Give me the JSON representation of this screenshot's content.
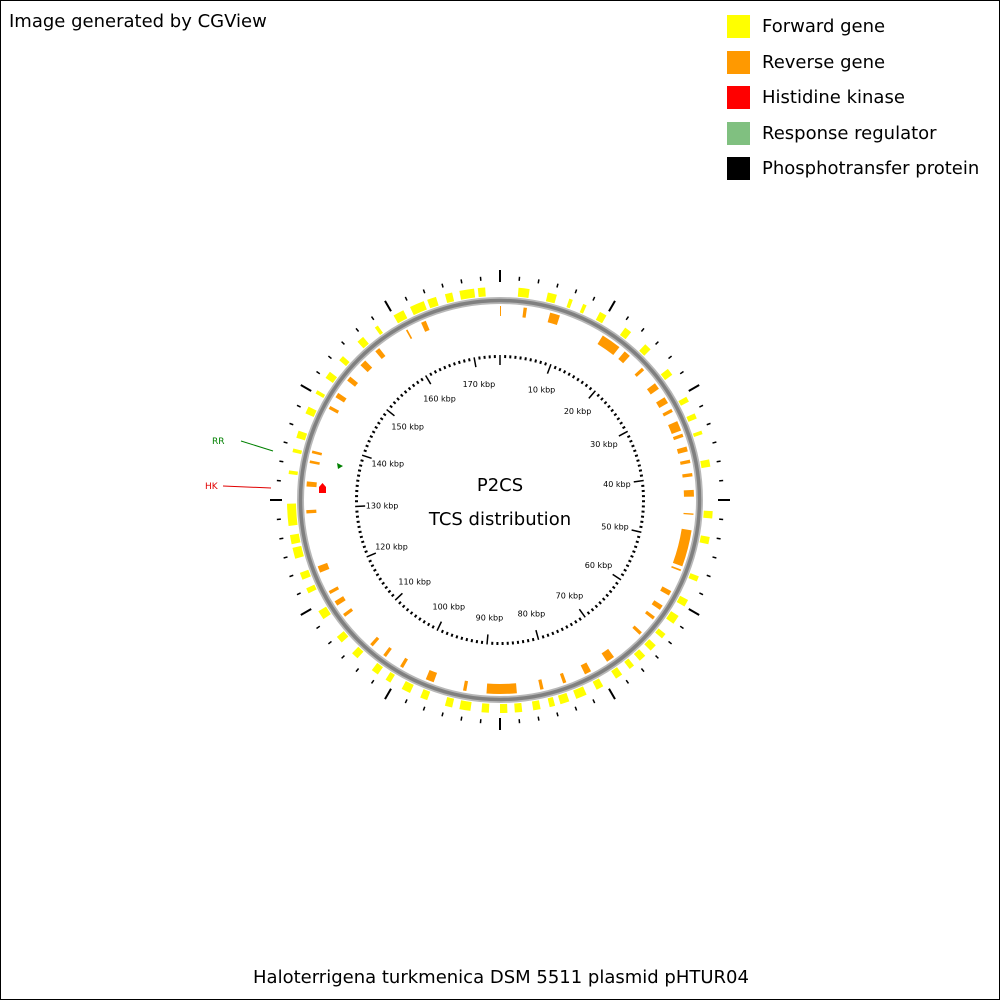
{
  "credit": "Image generated by CGView",
  "legend": [
    {
      "label": "Forward gene",
      "color": "#ffff00"
    },
    {
      "label": "Reverse gene",
      "color": "#ff9900"
    },
    {
      "label": "Histidine kinase",
      "color": "#ff0000"
    },
    {
      "label": "Response regulator",
      "color": "#80c080"
    },
    {
      "label": "Phosphotransfer protein",
      "color": "#000000"
    }
  ],
  "map": {
    "center_title": "P2CS",
    "center_subtitle": "TCS distribution",
    "plasmid_title": "Haloterrigena turkmenica DSM 5511 plasmid pHTUR04",
    "backbone_color": "#808080",
    "scale_labels": [
      "10 kbp",
      "20 kbp",
      "30 kbp",
      "40 kbp",
      "50 kbp",
      "60 kbp",
      "70 kbp",
      "80 kbp",
      "90 kbp",
      "100 kbp",
      "110 kbp",
      "120 kbp",
      "130 kbp",
      "140 kbp",
      "150 kbp",
      "160 kbp",
      "170 kbp"
    ],
    "annotations": [
      {
        "label": "RR",
        "color": "#008000"
      },
      {
        "label": "HK",
        "color": "#e00000"
      }
    ]
  }
}
